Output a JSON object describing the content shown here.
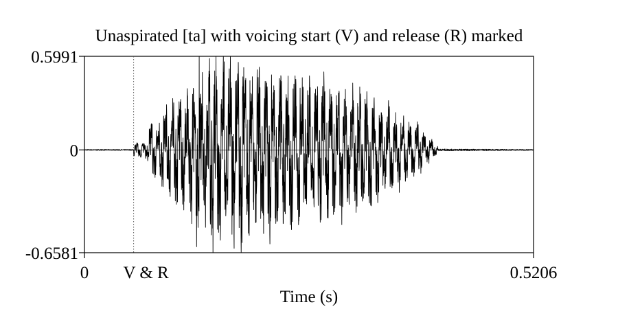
{
  "chart_data": {
    "type": "line",
    "title": "Unaspirated [ta] with voicing start (V) and release (R) marked",
    "xlabel": "Time (s)",
    "ylabel": "",
    "xlim": [
      0,
      0.5206
    ],
    "ylim": [
      -0.6581,
      0.5991
    ],
    "x_tick_labels": [
      "0",
      "0.5206"
    ],
    "y_tick_labels": [
      "0.5991",
      "0",
      "-0.6581"
    ],
    "zero_tick": 0,
    "marker": {
      "label": "V & R",
      "x": 0.057,
      "style": "dotted"
    },
    "grid": false,
    "legend": "none",
    "series": [
      {
        "color": "#000000",
        "signal": "speech waveform",
        "fs": 6000,
        "segments": [
          {
            "t0": 0.0,
            "t1": 0.057,
            "env": [
              0.003,
              0.003
            ]
          },
          {
            "t0": 0.057,
            "t1": 0.075,
            "env": [
              0.04,
              0.06
            ]
          },
          {
            "t0": 0.075,
            "t1": 0.13,
            "env": [
              0.15,
              0.45
            ]
          },
          {
            "t0": 0.13,
            "t1": 0.16,
            "env": [
              0.45,
              0.58
            ]
          },
          {
            "t0": 0.16,
            "t1": 0.32,
            "env": [
              0.58,
              0.36
            ]
          },
          {
            "t0": 0.32,
            "t1": 0.38,
            "env": [
              0.36,
              0.18
            ]
          },
          {
            "t0": 0.38,
            "t1": 0.41,
            "env": [
              0.18,
              0.02
            ]
          },
          {
            "t0": 0.41,
            "t1": 0.5206,
            "env": [
              0.006,
              0.003
            ]
          }
        ],
        "f0_hz": 120,
        "peaks": [
          {
            "x": 0.133,
            "y": 0.5991
          },
          {
            "x": 0.149,
            "y": -0.6581
          },
          {
            "x": 0.145,
            "y": 0.585
          },
          {
            "x": 0.13,
            "y": -0.62
          }
        ]
      }
    ]
  }
}
